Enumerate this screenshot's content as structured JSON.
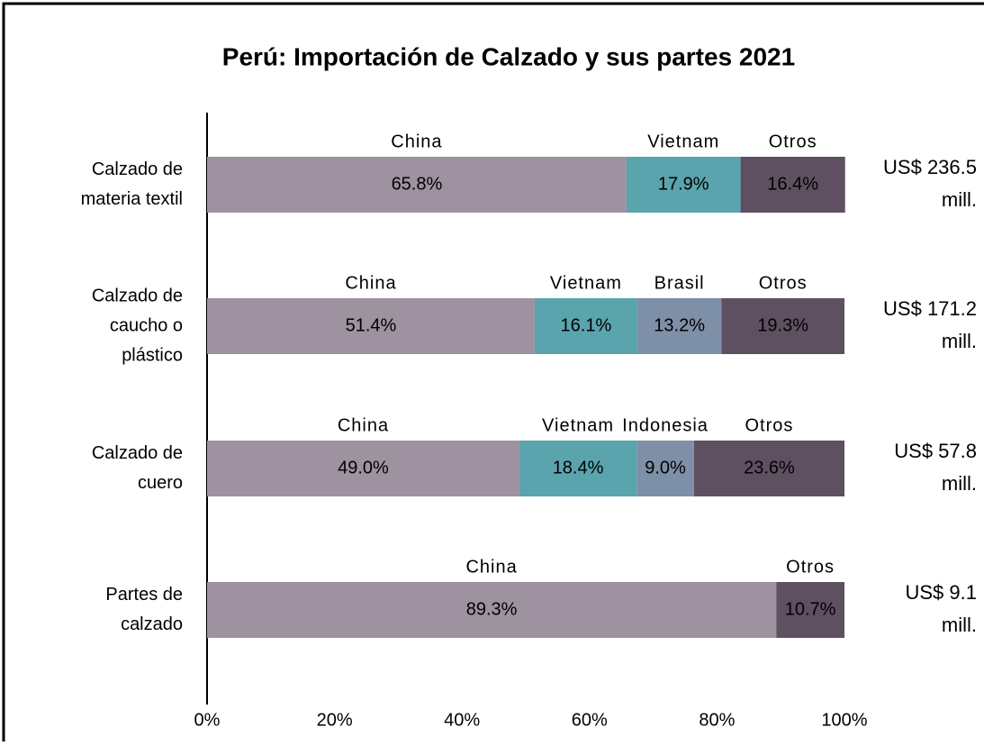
{
  "chart_data": {
    "type": "stacked_bar_horizontal",
    "title": "Perú: Importación de Calzado y sus partes 2021",
    "categories": [
      [
        "Calzado de",
        "materia textil"
      ],
      [
        "Calzado de",
        "caucho o",
        "plástico"
      ],
      [
        "Calzado de",
        "cuero"
      ],
      [
        "Partes de",
        "calzado"
      ]
    ],
    "series": [
      {
        "name": "China",
        "color": "#9e91a0",
        "values": [
          65.8,
          51.4,
          49.0,
          89.3
        ],
        "value_labels": [
          "65.8%",
          "51.4%",
          "49.0%",
          "89.3%"
        ]
      },
      {
        "name": "Vietnam",
        "color": "#5aa4ad",
        "values": [
          17.9,
          16.1,
          18.4,
          null
        ],
        "value_labels": [
          "17.9%",
          "16.1%",
          "18.4%",
          null
        ]
      },
      {
        "name": "Brasil",
        "color": "#7e8fa8",
        "values": [
          null,
          13.2,
          null,
          null
        ],
        "value_labels": [
          null,
          "13.2%",
          null,
          null
        ]
      },
      {
        "name": "Indonesia",
        "color": "#7e8fa8",
        "values": [
          null,
          null,
          9.0,
          null
        ],
        "value_labels": [
          null,
          null,
          "9.0%",
          null
        ]
      },
      {
        "name": "Otros",
        "color": "#5e5060",
        "values": [
          16.4,
          19.3,
          23.6,
          10.7
        ],
        "value_labels": [
          "16.4%",
          "19.3%",
          "23.6%",
          "10.7%"
        ]
      }
    ],
    "totals": [
      [
        "US$ 236.5",
        "mill."
      ],
      [
        "US$ 171.2",
        "mill."
      ],
      [
        "US$ 57.8",
        "mill."
      ],
      [
        "US$ 9.1",
        "mill."
      ]
    ],
    "xlim": [
      0,
      100
    ],
    "xticks": [
      {
        "value": 0,
        "label": "0%"
      },
      {
        "value": 20,
        "label": "20%"
      },
      {
        "value": 40,
        "label": "40%"
      },
      {
        "value": 60,
        "label": "60%"
      },
      {
        "value": 80,
        "label": "80%"
      },
      {
        "value": 100,
        "label": "100%"
      }
    ]
  }
}
